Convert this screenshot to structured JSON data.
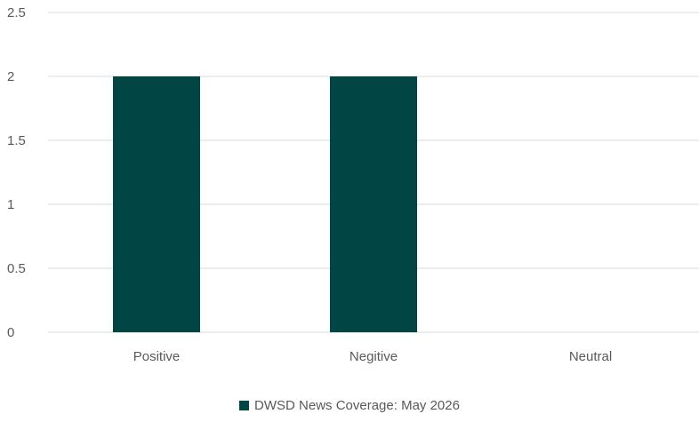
{
  "chart_data": {
    "type": "bar",
    "categories": [
      "Positive",
      "Negitive",
      "Neutral"
    ],
    "series": [
      {
        "name": "DWSD News Coverage: May 2026",
        "values": [
          2,
          2,
          0
        ]
      }
    ],
    "ylim": [
      0,
      2.5
    ],
    "yticks": [
      "0",
      "0.5",
      "1",
      "1.5",
      "2",
      "2.5"
    ],
    "grid": true,
    "legend_position": "bottom",
    "colors": {
      "bar": "#024545",
      "grid": "#d9d9d9",
      "text": "#595959"
    }
  }
}
